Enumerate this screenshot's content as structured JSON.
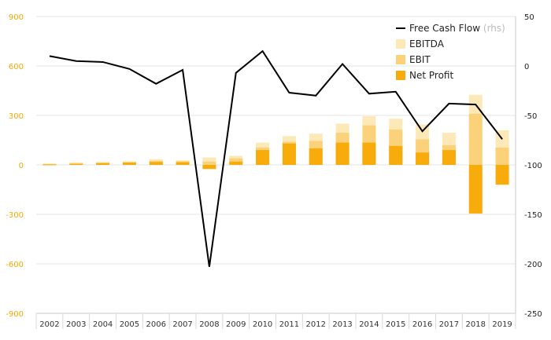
{
  "chart_data": {
    "type": "bar",
    "categories": [
      "2002",
      "2003",
      "2004",
      "2005",
      "2006",
      "2007",
      "2008",
      "2009",
      "2010",
      "2011",
      "2012",
      "2013",
      "2014",
      "2015",
      "2016",
      "2017",
      "2018",
      "2019"
    ],
    "series": [
      {
        "name": "EBITDA",
        "kind": "bar",
        "axis": "left",
        "color": "#fde9b8",
        "values": [
          8,
          15,
          18,
          22,
          35,
          28,
          45,
          55,
          135,
          175,
          190,
          250,
          295,
          280,
          245,
          195,
          425,
          210
        ]
      },
      {
        "name": "EBIT",
        "kind": "bar",
        "axis": "left",
        "color": "#fbd27a",
        "values": [
          5,
          10,
          14,
          16,
          25,
          22,
          20,
          40,
          105,
          140,
          145,
          195,
          240,
          215,
          155,
          120,
          310,
          105
        ]
      },
      {
        "name": "Net Profit",
        "kind": "bar",
        "axis": "left",
        "color": "#f7ac0b",
        "values": [
          3,
          6,
          10,
          14,
          18,
          16,
          -25,
          20,
          90,
          130,
          100,
          135,
          135,
          115,
          75,
          90,
          -295,
          -120
        ]
      },
      {
        "name": "Free Cash Flow",
        "name_suffix": "(rhs)",
        "kind": "line",
        "axis": "right",
        "color": "#000000",
        "values": [
          10,
          5,
          4,
          -3,
          -18,
          -4,
          -203,
          -7,
          15,
          -27,
          -30,
          2,
          -28,
          -26,
          -66,
          -38,
          -39,
          -74
        ]
      }
    ],
    "left_axis": {
      "min": -900,
      "max": 900,
      "ticks": [
        900,
        600,
        300,
        0,
        -300,
        -600,
        -900
      ],
      "color": "#f2a900"
    },
    "right_axis": {
      "min": -250,
      "max": 50,
      "ticks": [
        50,
        0,
        -50,
        -100,
        -150,
        -200,
        -250
      ]
    },
    "grid": true,
    "legend_position": "top-right"
  }
}
